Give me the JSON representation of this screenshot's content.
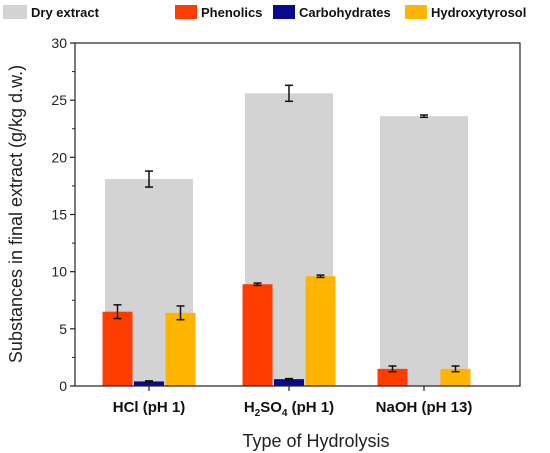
{
  "chart_data": {
    "type": "bar",
    "categories": [
      {
        "pre": "HCl (pH 1)",
        "sub": "",
        "post": ""
      },
      {
        "pre": "H",
        "sub": "2",
        "mid": "SO",
        "sub2": "4",
        "post": " (pH 1)"
      },
      {
        "pre": "NaOH (pH 13)",
        "sub": "",
        "post": ""
      }
    ],
    "xlabel": "Type of Hydrolysis",
    "ylabel": "Substances in final extract (g/kg d.w.)",
    "ylim": [
      0,
      30
    ],
    "yticks": [
      0,
      5,
      10,
      15,
      20,
      25,
      30
    ],
    "legend_placement": "top",
    "series": [
      {
        "name": "Dry extract",
        "color": "#d3d3d3",
        "values": [
          18.1,
          25.6,
          23.6
        ],
        "errors": [
          0.7,
          0.7,
          0.1
        ]
      },
      {
        "name": "Phenolics",
        "color": "#ff3c00",
        "values": [
          6.5,
          8.9,
          1.5
        ],
        "errors": [
          0.6,
          0.1,
          0.25
        ]
      },
      {
        "name": "Carbohydrates",
        "color": "#0a0a8c",
        "values": [
          0.4,
          0.6,
          0.0
        ],
        "errors": [
          0.05,
          0.05,
          0.0
        ]
      },
      {
        "name": "Hydroxytyrosol",
        "color": "#ffb400",
        "values": [
          6.4,
          9.6,
          1.5
        ],
        "errors": [
          0.6,
          0.1,
          0.25
        ]
      }
    ]
  }
}
